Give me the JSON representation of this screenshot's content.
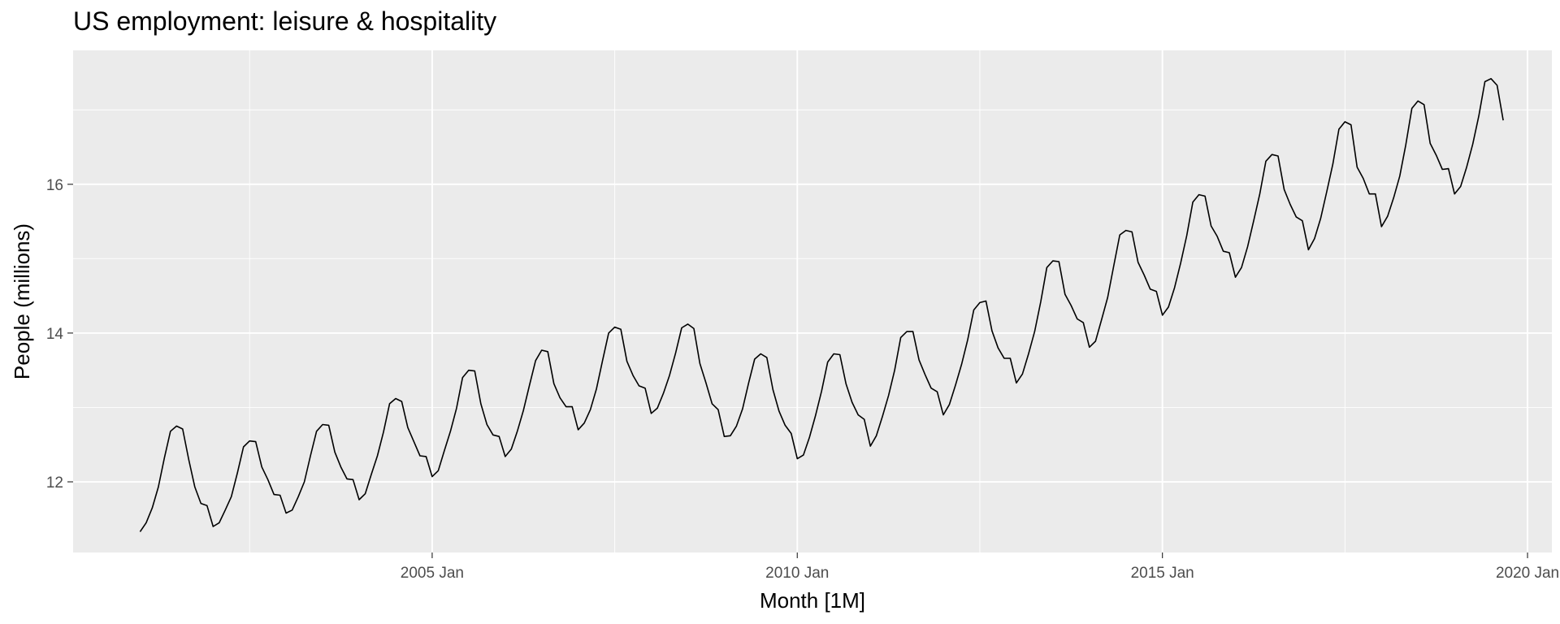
{
  "chart_data": {
    "type": "line",
    "title": "US employment: leisure & hospitality",
    "xlabel": "Month [1M]",
    "ylabel": "People (millions)",
    "x_range": [
      "2000-02",
      "2020-05"
    ],
    "ylim": [
      11.05,
      17.8
    ],
    "grid": true,
    "x_ticks": [
      {
        "date": "2005-01",
        "label": "2005 Jan"
      },
      {
        "date": "2010-01",
        "label": "2010 Jan"
      },
      {
        "date": "2015-01",
        "label": "2015 Jan"
      },
      {
        "date": "2020-01",
        "label": "2020 Jan"
      }
    ],
    "y_ticks": [
      12,
      14,
      16
    ],
    "series": [
      {
        "color": "#000000",
        "x": [
          "2001-01",
          "2001-02",
          "2001-03",
          "2001-04",
          "2001-05",
          "2001-06",
          "2001-07",
          "2001-08",
          "2001-09",
          "2001-10",
          "2001-11",
          "2001-12",
          "2002-01",
          "2002-02",
          "2002-03",
          "2002-04",
          "2002-05",
          "2002-06",
          "2002-07",
          "2002-08",
          "2002-09",
          "2002-10",
          "2002-11",
          "2002-12",
          "2003-01",
          "2003-02",
          "2003-03",
          "2003-04",
          "2003-05",
          "2003-06",
          "2003-07",
          "2003-08",
          "2003-09",
          "2003-10",
          "2003-11",
          "2003-12",
          "2004-01",
          "2004-02",
          "2004-03",
          "2004-04",
          "2004-05",
          "2004-06",
          "2004-07",
          "2004-08",
          "2004-09",
          "2004-10",
          "2004-11",
          "2004-12",
          "2005-01",
          "2005-02",
          "2005-03",
          "2005-04",
          "2005-05",
          "2005-06",
          "2005-07",
          "2005-08",
          "2005-09",
          "2005-10",
          "2005-11",
          "2005-12",
          "2006-01",
          "2006-02",
          "2006-03",
          "2006-04",
          "2006-05",
          "2006-06",
          "2006-07",
          "2006-08",
          "2006-09",
          "2006-10",
          "2006-11",
          "2006-12",
          "2007-01",
          "2007-02",
          "2007-03",
          "2007-04",
          "2007-05",
          "2007-06",
          "2007-07",
          "2007-08",
          "2007-09",
          "2007-10",
          "2007-11",
          "2007-12",
          "2008-01",
          "2008-02",
          "2008-03",
          "2008-04",
          "2008-05",
          "2008-06",
          "2008-07",
          "2008-08",
          "2008-09",
          "2008-10",
          "2008-11",
          "2008-12",
          "2009-01",
          "2009-02",
          "2009-03",
          "2009-04",
          "2009-05",
          "2009-06",
          "2009-07",
          "2009-08",
          "2009-09",
          "2009-10",
          "2009-11",
          "2009-12",
          "2010-01",
          "2010-02",
          "2010-03",
          "2010-04",
          "2010-05",
          "2010-06",
          "2010-07",
          "2010-08",
          "2010-09",
          "2010-10",
          "2010-11",
          "2010-12",
          "2011-01",
          "2011-02",
          "2011-03",
          "2011-04",
          "2011-05",
          "2011-06",
          "2011-07",
          "2011-08",
          "2011-09",
          "2011-10",
          "2011-11",
          "2011-12",
          "2012-01",
          "2012-02",
          "2012-03",
          "2012-04",
          "2012-05",
          "2012-06",
          "2012-07",
          "2012-08",
          "2012-09",
          "2012-10",
          "2012-11",
          "2012-12",
          "2013-01",
          "2013-02",
          "2013-03",
          "2013-04",
          "2013-05",
          "2013-06",
          "2013-07",
          "2013-08",
          "2013-09",
          "2013-10",
          "2013-11",
          "2013-12",
          "2014-01",
          "2014-02",
          "2014-03",
          "2014-04",
          "2014-05",
          "2014-06",
          "2014-07",
          "2014-08",
          "2014-09",
          "2014-10",
          "2014-11",
          "2014-12",
          "2015-01",
          "2015-02",
          "2015-03",
          "2015-04",
          "2015-05",
          "2015-06",
          "2015-07",
          "2015-08",
          "2015-09",
          "2015-10",
          "2015-11",
          "2015-12",
          "2016-01",
          "2016-02",
          "2016-03",
          "2016-04",
          "2016-05",
          "2016-06",
          "2016-07",
          "2016-08",
          "2016-09",
          "2016-10",
          "2016-11",
          "2016-12",
          "2017-01",
          "2017-02",
          "2017-03",
          "2017-04",
          "2017-05",
          "2017-06",
          "2017-07",
          "2017-08",
          "2017-09",
          "2017-10",
          "2017-11",
          "2017-12",
          "2018-01",
          "2018-02",
          "2018-03",
          "2018-04",
          "2018-05",
          "2018-06",
          "2018-07",
          "2018-08",
          "2018-09",
          "2018-10",
          "2018-11",
          "2018-12",
          "2019-01",
          "2019-02",
          "2019-03",
          "2019-04",
          "2019-05",
          "2019-06",
          "2019-07",
          "2019-08",
          "2019-09"
        ],
        "y": [
          11.33,
          11.45,
          11.65,
          11.93,
          12.32,
          12.68,
          12.75,
          12.71,
          12.3,
          11.93,
          11.71,
          11.68,
          11.4,
          11.45,
          11.62,
          11.8,
          12.12,
          12.47,
          12.55,
          12.54,
          12.2,
          12.03,
          11.83,
          11.82,
          11.58,
          11.62,
          11.8,
          12.0,
          12.35,
          12.68,
          12.77,
          12.76,
          12.4,
          12.2,
          12.04,
          12.03,
          11.76,
          11.84,
          12.1,
          12.35,
          12.67,
          13.05,
          13.12,
          13.08,
          12.73,
          12.54,
          12.35,
          12.34,
          12.07,
          12.15,
          12.42,
          12.68,
          12.99,
          13.4,
          13.5,
          13.49,
          13.05,
          12.77,
          12.63,
          12.61,
          12.34,
          12.44,
          12.68,
          12.96,
          13.3,
          13.63,
          13.77,
          13.75,
          13.32,
          13.13,
          13.01,
          13.01,
          12.7,
          12.79,
          12.97,
          13.25,
          13.63,
          14.0,
          14.08,
          14.05,
          13.62,
          13.43,
          13.29,
          13.26,
          12.92,
          12.99,
          13.19,
          13.43,
          13.73,
          14.07,
          14.12,
          14.06,
          13.59,
          13.33,
          13.05,
          12.97,
          12.61,
          12.62,
          12.75,
          12.98,
          13.33,
          13.65,
          13.72,
          13.67,
          13.24,
          12.95,
          12.76,
          12.65,
          12.31,
          12.36,
          12.6,
          12.89,
          13.22,
          13.61,
          13.72,
          13.71,
          13.32,
          13.07,
          12.9,
          12.84,
          12.48,
          12.62,
          12.88,
          13.16,
          13.5,
          13.94,
          14.02,
          14.02,
          13.64,
          13.44,
          13.26,
          13.21,
          12.9,
          13.04,
          13.3,
          13.58,
          13.91,
          14.31,
          14.41,
          14.43,
          14.03,
          13.8,
          13.66,
          13.66,
          13.33,
          13.45,
          13.72,
          14.02,
          14.42,
          14.88,
          14.97,
          14.96,
          14.52,
          14.37,
          14.19,
          14.14,
          13.81,
          13.89,
          14.18,
          14.48,
          14.9,
          15.32,
          15.38,
          15.36,
          14.95,
          14.78,
          14.59,
          14.56,
          14.24,
          14.35,
          14.61,
          14.94,
          15.31,
          15.76,
          15.86,
          15.84,
          15.44,
          15.3,
          15.1,
          15.08,
          14.75,
          14.88,
          15.16,
          15.51,
          15.87,
          16.31,
          16.4,
          16.38,
          15.93,
          15.73,
          15.56,
          15.51,
          15.12,
          15.27,
          15.54,
          15.9,
          16.27,
          16.74,
          16.84,
          16.8,
          16.23,
          16.08,
          15.87,
          15.87,
          15.43,
          15.57,
          15.82,
          16.11,
          16.53,
          17.02,
          17.12,
          17.07,
          16.55,
          16.39,
          16.2,
          16.21,
          15.87,
          15.97,
          16.23,
          16.54,
          16.92,
          17.38,
          17.42,
          17.33,
          16.86
        ]
      }
    ]
  }
}
